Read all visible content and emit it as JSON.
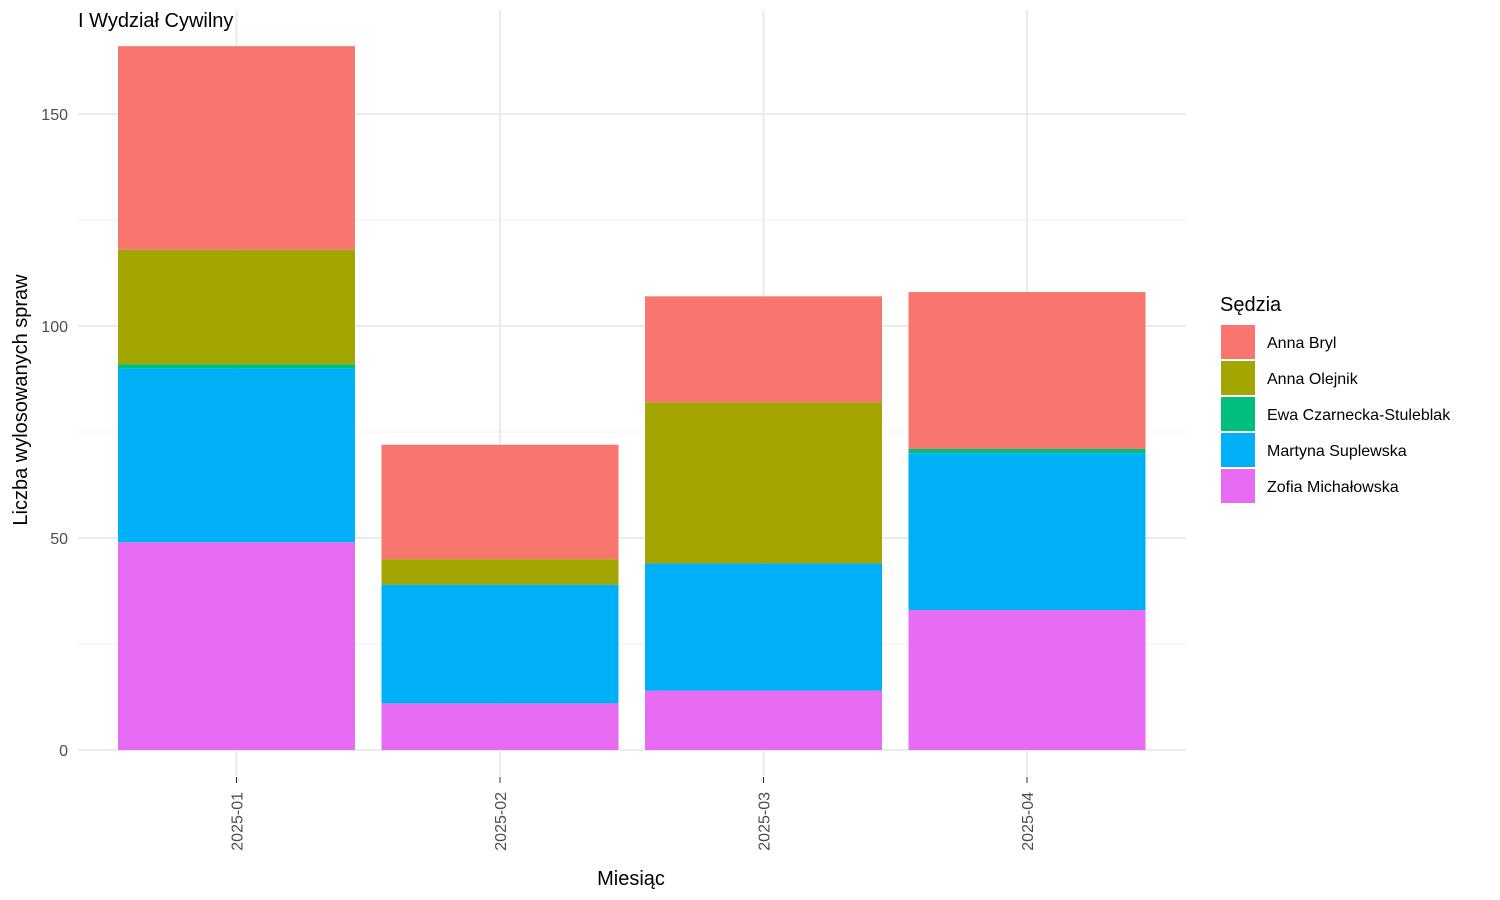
{
  "chart_data": {
    "type": "bar",
    "stacked": true,
    "title": "I Wydział Cywilny",
    "xlabel": "Miesiąc",
    "ylabel": "Liczba wylosowanych spraw",
    "ylim": [
      0,
      168
    ],
    "yticks": [
      0,
      50,
      100,
      150
    ],
    "grid": true,
    "legend_position": "right",
    "legend_title": "Sędzia",
    "categories": [
      "2025-01",
      "2025-02",
      "2025-03",
      "2025-04"
    ],
    "series": [
      {
        "name": "Anna Bryl",
        "color": "#F8766D",
        "values": [
          48,
          27,
          25,
          37
        ]
      },
      {
        "name": "Anna Olejnik",
        "color": "#A3A500",
        "values": [
          27,
          6,
          38,
          0
        ]
      },
      {
        "name": "Ewa Czarnecka-Stuleblak",
        "color": "#00BF7D",
        "values": [
          1,
          0,
          0,
          1
        ]
      },
      {
        "name": "Martyna Suplewska",
        "color": "#00B0F6",
        "values": [
          41,
          28,
          30,
          37
        ]
      },
      {
        "name": "Zofia Michałowska",
        "color": "#E76BF3",
        "values": [
          49,
          11,
          14,
          33
        ]
      }
    ]
  }
}
